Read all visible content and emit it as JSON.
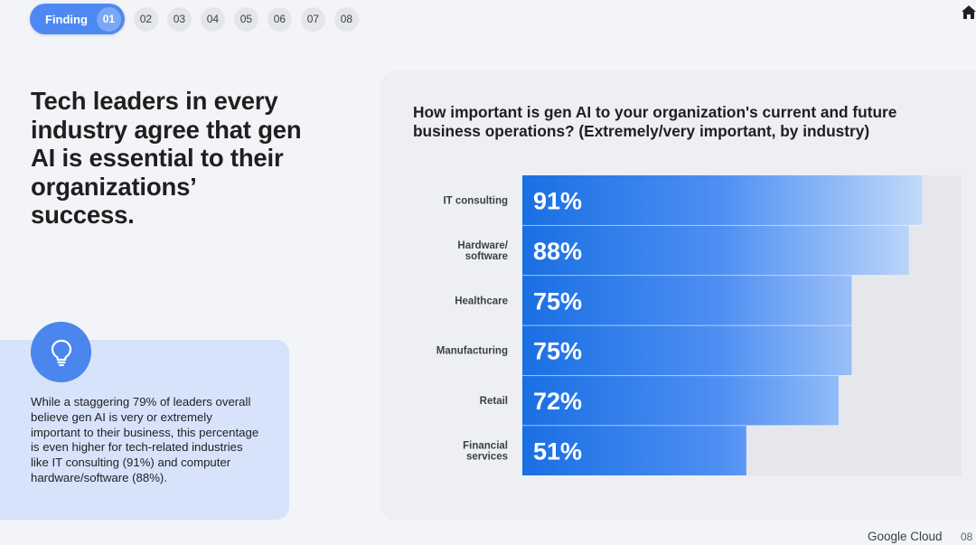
{
  "nav": {
    "active_label": "Finding",
    "active_number": "01",
    "pages": [
      "02",
      "03",
      "04",
      "05",
      "06",
      "07",
      "08"
    ]
  },
  "headline": "Tech leaders in every industry agree that gen AI is essential to their organizations’ success.",
  "insight": {
    "icon": "lightbulb-icon",
    "text": "While a staggering 79% of leaders overall believe gen AI is very or extremely important to their business, this percentage is even higher for tech-related industries like IT consulting (91%) and computer hardware/software (88%)."
  },
  "chart_data": {
    "type": "bar",
    "orientation": "horizontal",
    "title": "How important is gen AI to your organization's current and future business operations? (Extremely/very important, by industry)",
    "categories": [
      [
        "IT consulting"
      ],
      [
        "Hardware/",
        "software"
      ],
      [
        "Healthcare"
      ],
      [
        "Manufacturing"
      ],
      [
        "Retail"
      ],
      [
        "Financial",
        "services"
      ]
    ],
    "values": [
      91,
      88,
      75,
      75,
      72,
      51
    ],
    "value_labels": [
      "91%",
      "88%",
      "75%",
      "75%",
      "72%",
      "51%"
    ],
    "unit": "%",
    "xlim": [
      0,
      100
    ],
    "grid": false,
    "legend": "none"
  },
  "colors": {
    "accent": "#4e88f2",
    "bar_dark": "#1a6fe3",
    "bar_light": "#d9e7fb",
    "track": "#e6e7ec",
    "card": "#d6e3fb"
  },
  "footer": {
    "brand": "Google Cloud",
    "page": "08"
  }
}
